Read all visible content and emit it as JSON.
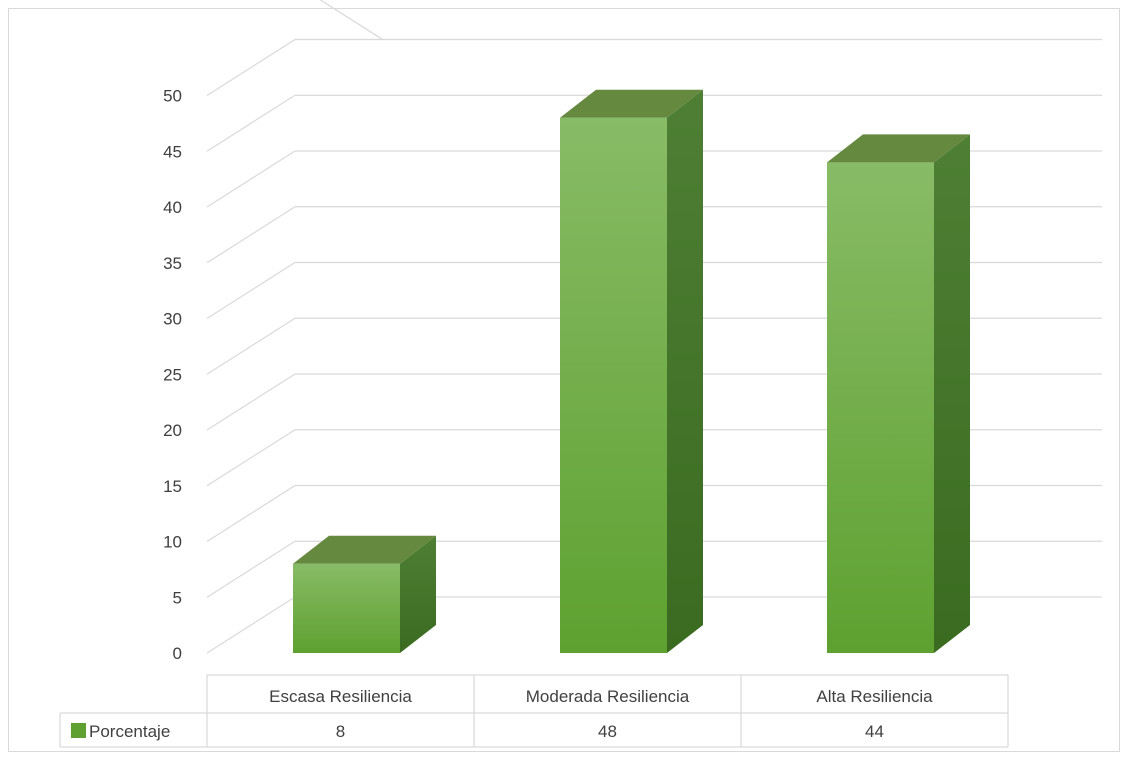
{
  "chart_data": {
    "type": "bar",
    "title": "",
    "xlabel": "",
    "ylabel": "",
    "categories": [
      "Escasa Resiliencia",
      "Moderada Resiliencia",
      "Alta Resiliencia"
    ],
    "series": [
      {
        "name": "Porcentaje",
        "values": [
          8,
          48,
          44
        ]
      }
    ],
    "value_labels": [
      "8",
      "48",
      "44"
    ],
    "ylim": [
      0,
      50
    ],
    "yticks": [
      "0",
      "5",
      "10",
      "15",
      "20",
      "25",
      "30",
      "35",
      "40",
      "45",
      "50"
    ],
    "grid": true,
    "style": "3d-column",
    "data_table": true,
    "colors": {
      "front_top": "#88bb66",
      "front_bottom": "#5ea130",
      "side": "#44772a",
      "top": "#64893f",
      "grid": "#d9d9d9",
      "text": "#404040"
    }
  }
}
